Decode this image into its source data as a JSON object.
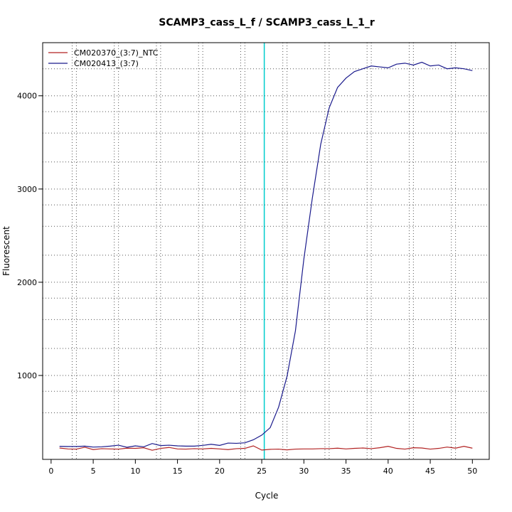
{
  "chart_data": {
    "type": "line",
    "title": "SCAMP3_cass_L_f / SCAMP3_cass_L_1_r",
    "xlabel": "Cycle",
    "ylabel": "Fluorescent",
    "xlim": [
      -1,
      52
    ],
    "ylim": [
      100,
      4570
    ],
    "x_ticks": [
      0,
      5,
      10,
      15,
      20,
      25,
      30,
      35,
      40,
      45,
      50
    ],
    "y_ticks": [
      1000,
      2000,
      3000,
      4000
    ],
    "x_grid": [
      2.5,
      7.5,
      12.5,
      17.5,
      22.5,
      27.5,
      32.5,
      37.5,
      42.5,
      47.5,
      3,
      8,
      13,
      18,
      23,
      28,
      33,
      38,
      43,
      48
    ],
    "y_grid": [
      4000,
      3600,
      3000,
      2600,
      2000,
      1600,
      1000,
      600,
      830,
      1290,
      1830,
      2290,
      2830,
      3290,
      3830,
      4290
    ],
    "threshold_x": 25.3,
    "threshold_color": "#00cccc",
    "grid": true,
    "legend_position": "top-left",
    "x": [
      1,
      2,
      3,
      4,
      5,
      6,
      7,
      8,
      9,
      10,
      11,
      12,
      13,
      14,
      15,
      16,
      17,
      18,
      19,
      20,
      21,
      22,
      23,
      24,
      25,
      26,
      27,
      28,
      29,
      30,
      31,
      32,
      33,
      34,
      35,
      36,
      37,
      38,
      39,
      40,
      41,
      42,
      43,
      44,
      45,
      46,
      47,
      48,
      49,
      50
    ],
    "series": [
      {
        "name": "CM020370_(3:7)_NTC",
        "color": "#b22222",
        "values": [
          222,
          212,
          210,
          230,
          205,
          215,
          212,
          210,
          220,
          218,
          225,
          198,
          218,
          228,
          212,
          210,
          215,
          212,
          218,
          212,
          205,
          215,
          218,
          245,
          200,
          208,
          210,
          202,
          210,
          212,
          212,
          215,
          215,
          220,
          212,
          218,
          222,
          215,
          225,
          240,
          218,
          210,
          225,
          222,
          210,
          218,
          232,
          220,
          240,
          220
        ]
      },
      {
        "name": "CM020413_(3:7)",
        "color": "#1a1a8c",
        "values": [
          240,
          238,
          238,
          242,
          232,
          235,
          242,
          252,
          230,
          245,
          235,
          270,
          248,
          252,
          245,
          242,
          242,
          250,
          262,
          250,
          275,
          272,
          278,
          310,
          360,
          440,
          660,
          990,
          1480,
          2250,
          2900,
          3480,
          3870,
          4090,
          4190,
          4260,
          4290,
          4320,
          4310,
          4300,
          4340,
          4350,
          4330,
          4360,
          4320,
          4330,
          4290,
          4300,
          4290,
          4270
        ]
      }
    ]
  }
}
